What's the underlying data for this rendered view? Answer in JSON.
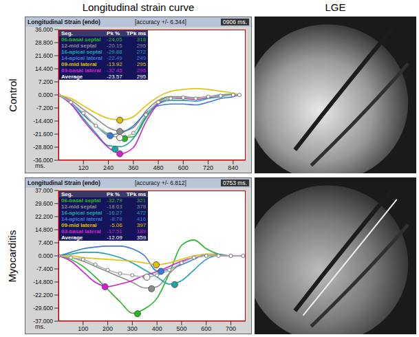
{
  "headers": {
    "left": "Longitudinal strain curve",
    "right": "LGE"
  },
  "chart_data": [
    {
      "type": "line",
      "panel_label": "Control",
      "title": "Longitudinal Strain (endo)",
      "subtitle": "[accuracy +/- 6.344]",
      "annotation": "0906 ms.",
      "x_label": "ms.",
      "grid": false,
      "table_columns": [
        "Seg.",
        "Pk %",
        "TPk ms"
      ],
      "x": [
        0,
        60,
        120,
        180,
        240,
        300,
        360,
        420,
        480,
        540,
        600,
        660,
        720,
        780,
        840,
        870
      ],
      "xlim": [
        0,
        900
      ],
      "xticks": [
        120,
        240,
        360,
        480,
        600,
        720,
        840
      ],
      "ylim": [
        -36,
        36
      ],
      "yticks": [
        {
          "value": -36,
          "label": "-36.000"
        },
        {
          "value": -28.8,
          "label": "-28.800"
        },
        {
          "value": -21.6,
          "label": "-21.600"
        },
        {
          "value": -14.4,
          "label": "-14.400"
        },
        {
          "value": -7.2,
          "label": "-7.200"
        },
        {
          "value": 0,
          "label": "0.000"
        },
        {
          "value": 7.2,
          "label": "7.200"
        },
        {
          "value": 14.4,
          "label": "14.400"
        },
        {
          "value": 21.6,
          "label": "21.600"
        },
        {
          "value": 28.8,
          "label": "28.800"
        },
        {
          "value": 36,
          "label": "36.000"
        }
      ],
      "series": [
        {
          "name": "06-basal septal",
          "color": "#22b822",
          "marker": "none",
          "pk": -24.05,
          "tpk": 318,
          "values": [
            0,
            -4,
            -11,
            -17,
            -21.5,
            -23.5,
            -23,
            -13,
            -4,
            -1,
            -1.5,
            -2,
            -1,
            0,
            0.5,
            0
          ]
        },
        {
          "name": "12-mid septal",
          "color": "#8c8c8c",
          "marker": "none",
          "pk": -20.15,
          "tpk": 295,
          "values": [
            0,
            -3,
            -8,
            -13,
            -18,
            -20,
            -18,
            -9,
            -3,
            -1,
            -1,
            -1.5,
            -1,
            0,
            0,
            0
          ]
        },
        {
          "name": "16-apical septal",
          "color": "#1aa6a6",
          "marker": "none",
          "pk": -29.88,
          "tpk": 272,
          "values": [
            0,
            -5,
            -13,
            -21,
            -28,
            -28.5,
            -24,
            -12,
            -5,
            -3,
            -3,
            -3.5,
            -2,
            -1,
            0,
            0
          ]
        },
        {
          "name": "14-apical lateral",
          "color": "#3a7ad8",
          "marker": "none",
          "pk": -22.49,
          "tpk": 249,
          "values": [
            0,
            -4,
            -11,
            -17,
            -22,
            -21,
            -17,
            -10,
            -6,
            -5,
            -5,
            -5.5,
            -4,
            -2,
            -1,
            0
          ]
        },
        {
          "name": "09-mid lateral",
          "color": "#e0c000",
          "marker": "none",
          "pk": -13.92,
          "tpk": 295,
          "values": [
            0,
            -2,
            -6,
            -10,
            -13,
            -13.8,
            -12,
            -6,
            -1,
            2,
            3,
            3.5,
            3,
            2,
            1,
            0
          ]
        },
        {
          "name": "03-basal lateral",
          "color": "#d020d0",
          "marker": "none",
          "pk": -32.45,
          "tpk": 295,
          "values": [
            0,
            -5,
            -14,
            -22,
            -29,
            -32.3,
            -29,
            -15,
            -5,
            -2,
            -2,
            -2.5,
            -1.5,
            -0.5,
            0,
            0
          ]
        },
        {
          "name": "Average",
          "color": "#b4b4b4",
          "marker": "circle",
          "pk": -23.57,
          "tpk": 295,
          "values": [
            0,
            -4,
            -10,
            -17,
            -21.8,
            -23.4,
            -21,
            -11,
            -4,
            -2,
            -1.5,
            -2,
            -1,
            -0.5,
            0,
            0
          ]
        }
      ]
    },
    {
      "type": "line",
      "panel_label": "Myocarditis",
      "title": "Longitudinal Strain (endo)",
      "subtitle": "[accuracy +/- 6.812]",
      "annotation": "0753 ms.",
      "x_label": "ms.",
      "grid": false,
      "table_columns": [
        "Seg.",
        "Pk %",
        "TPk ms"
      ],
      "x": [
        0,
        50,
        100,
        150,
        200,
        250,
        300,
        350,
        400,
        450,
        500,
        550,
        600,
        650,
        700,
        750
      ],
      "xlim": [
        0,
        760
      ],
      "xticks": [
        100,
        200,
        300,
        400,
        500,
        600,
        700
      ],
      "ylim": [
        -37,
        37
      ],
      "yticks": [
        {
          "value": -37,
          "label": "-37.000"
        },
        {
          "value": -29.6,
          "label": "-29.600"
        },
        {
          "value": -22.2,
          "label": "-22.200"
        },
        {
          "value": -14.8,
          "label": "-14.800"
        },
        {
          "value": -7.4,
          "label": "-7.400"
        },
        {
          "value": 0,
          "label": "0.000"
        },
        {
          "value": 7.4,
          "label": "7.400"
        },
        {
          "value": 14.8,
          "label": "14.800"
        },
        {
          "value": 22.2,
          "label": "22.200"
        },
        {
          "value": 29.6,
          "label": "29.600"
        },
        {
          "value": 37,
          "label": "37.000"
        }
      ],
      "series": [
        {
          "name": "06-basal septal",
          "color": "#22b822",
          "marker": "none",
          "pk": -32.79,
          "tpk": 321,
          "values": [
            0,
            -2,
            -6,
            -12,
            -19,
            -26,
            -32.5,
            -30,
            -24,
            -10,
            6,
            9,
            4,
            1,
            0,
            0
          ]
        },
        {
          "name": "12-mid septal",
          "color": "#8c8c8c",
          "marker": "none",
          "pk": -18.63,
          "tpk": 378,
          "values": [
            0,
            -1,
            -3,
            -6,
            -9,
            -12,
            -15,
            -18.2,
            -17.5,
            -10,
            -4,
            -1,
            0,
            0,
            0,
            0
          ]
        },
        {
          "name": "16-apical septal",
          "color": "#1aa6a6",
          "marker": "none",
          "pk": -16.27,
          "tpk": 472,
          "values": [
            0,
            1,
            2,
            2,
            1,
            -1,
            -4,
            -8,
            -12,
            -16,
            -14,
            -8,
            -2,
            0,
            0,
            0
          ]
        },
        {
          "name": "14-apical lateral",
          "color": "#3a7ad8",
          "marker": "none",
          "pk": -8.78,
          "tpk": 416,
          "values": [
            0,
            2,
            4,
            5,
            5.5,
            5.5,
            4,
            0,
            -8.5,
            -7.5,
            -5,
            -2,
            1,
            1,
            0,
            0
          ]
        },
        {
          "name": "09-mid lateral",
          "color": "#e0c000",
          "marker": "none",
          "pk": -5.06,
          "tpk": 397,
          "values": [
            0,
            0,
            -1,
            -1.5,
            -2,
            -2.5,
            -3,
            -4,
            -5,
            -4,
            -2,
            0,
            1,
            0.5,
            0,
            0
          ]
        },
        {
          "name": "03-basal lateral",
          "color": "#d020d0",
          "marker": "none",
          "pk": -17.51,
          "tpk": 189,
          "values": [
            0,
            -3,
            -9,
            -15,
            -17.4,
            -16,
            -14,
            -11,
            -9,
            -6,
            -3,
            -1,
            0,
            0,
            0,
            0
          ]
        },
        {
          "name": "Average",
          "color": "#b4b4b4",
          "marker": "circle",
          "pk": -12.09,
          "tpk": 359,
          "values": [
            0,
            -1,
            -2,
            -5,
            -8,
            -10,
            -11,
            -12,
            -11,
            -8,
            -4,
            -1,
            0,
            0,
            0,
            0
          ]
        }
      ]
    }
  ]
}
